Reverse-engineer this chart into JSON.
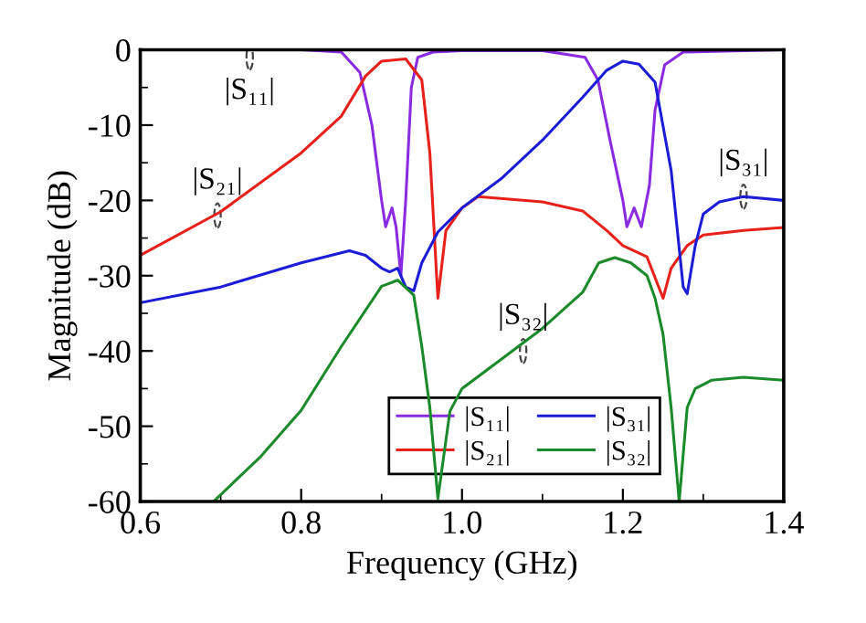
{
  "chart_data": {
    "type": "line",
    "xlabel": "Frequency (GHz)",
    "ylabel": "Magnitude (dB)",
    "xlim": [
      0.6,
      1.4
    ],
    "ylim": [
      -60,
      0
    ],
    "xticks": [
      0.6,
      0.8,
      {
        "value": 1.0,
        "label": "1.0"
      },
      1.2,
      1.4
    ],
    "yticks": [
      -60,
      -50,
      -40,
      -30,
      -20,
      -10,
      0
    ],
    "grid": false,
    "legend": "bottom",
    "marker": "none",
    "line_style": "solid",
    "series": [
      {
        "name": "|S₁₁|",
        "color": "#8a2be2",
        "x": [
          0.6,
          0.8,
          0.85,
          0.873,
          0.888,
          0.9,
          0.905,
          0.913,
          0.918,
          0.924,
          0.93,
          0.937,
          0.945,
          0.964,
          1.0,
          1.1,
          1.153,
          1.169,
          1.184,
          1.2,
          1.205,
          1.214,
          1.223,
          1.233,
          1.24,
          1.252,
          1.275,
          1.4
        ],
        "values": [
          0,
          0,
          -0.3,
          -3,
          -10,
          -20,
          -23.5,
          -21,
          -23.5,
          -30,
          -20,
          -5,
          -1,
          -0.3,
          -0.1,
          -0.1,
          -1,
          -4,
          -12,
          -20,
          -23.5,
          -21,
          -23.5,
          -18,
          -8,
          -2,
          -0.3,
          0
        ]
      },
      {
        "name": "|S₂₁|",
        "color": "#e8201a",
        "x": [
          0.6,
          0.7,
          0.8,
          0.85,
          0.88,
          0.9,
          0.93,
          0.95,
          0.96,
          0.97,
          0.98,
          1.0,
          1.02,
          1.1,
          1.15,
          1.18,
          1.2,
          1.23,
          1.25,
          1.26,
          1.28,
          1.3,
          1.35,
          1.4
        ],
        "values": [
          -27.3,
          -21.5,
          -13.7,
          -8.8,
          -3.5,
          -1.5,
          -1.2,
          -4,
          -13.7,
          -33,
          -24,
          -21,
          -19.5,
          -20.2,
          -21.4,
          -24,
          -26,
          -27.5,
          -33,
          -29,
          -26,
          -24.6,
          -24,
          -23.6
        ]
      },
      {
        "name": "|S₃₁|",
        "color": "#1c1cd6",
        "x": [
          0.6,
          0.7,
          0.8,
          0.86,
          0.88,
          0.9,
          0.91,
          0.92,
          0.93,
          0.94,
          0.95,
          0.97,
          1.0,
          1.05,
          1.1,
          1.15,
          1.18,
          1.2,
          1.22,
          1.24,
          1.26,
          1.275,
          1.28,
          1.29,
          1.3,
          1.32,
          1.35,
          1.4
        ],
        "values": [
          -33.6,
          -31.5,
          -28.3,
          -26.7,
          -27.3,
          -29,
          -29.5,
          -29,
          -31.5,
          -32,
          -28.3,
          -24.2,
          -21,
          -17,
          -12,
          -6.3,
          -2.7,
          -1.5,
          -1.9,
          -4.3,
          -16,
          -31.5,
          -32.4,
          -26,
          -21.8,
          -20.2,
          -19.5,
          -20
        ]
      },
      {
        "name": "|S₃₂|",
        "color": "#1a8a2a",
        "x": [
          0.691,
          0.75,
          0.8,
          0.85,
          0.9,
          0.92,
          0.94,
          0.95,
          0.96,
          0.97,
          0.985,
          1.0,
          1.05,
          1.1,
          1.15,
          1.17,
          1.19,
          1.21,
          1.23,
          1.24,
          1.25,
          1.26,
          1.27,
          1.28,
          1.29,
          1.31,
          1.35,
          1.4
        ],
        "values": [
          -60,
          -54,
          -47.9,
          -39.4,
          -31.4,
          -30.6,
          -32.6,
          -39.4,
          -47.5,
          -59.6,
          -48,
          -45,
          -41,
          -37,
          -32.2,
          -28.3,
          -27.6,
          -28.3,
          -30,
          -33,
          -37.8,
          -47.5,
          -60,
          -47.5,
          -45,
          -43.9,
          -43.5,
          -43.9
        ]
      }
    ],
    "annotations": [
      {
        "text": "|S₁₁|",
        "x": 0.736,
        "y": -1
      },
      {
        "text": "|S₂₁|",
        "x": 0.696,
        "y": -22
      },
      {
        "text": "|S₃₁|",
        "x": 1.35,
        "y": -19.5
      },
      {
        "text": "|S₃₂|",
        "x": 1.076,
        "y": -40
      }
    ]
  }
}
